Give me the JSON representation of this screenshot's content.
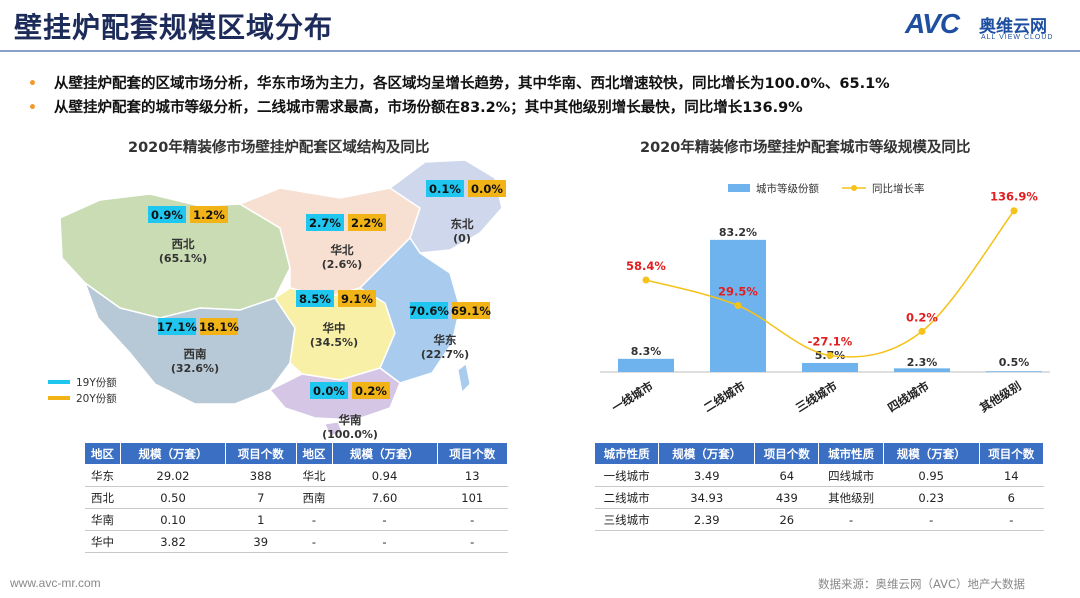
{
  "header": {
    "title": "壁挂炉配套规模区域分布",
    "logo_text": "AVC",
    "logo_cn": "奥维云网",
    "logo_en": "ALL VIEW CLOUD"
  },
  "bullets": [
    "从壁挂炉配套的区域市场分析，华东市场为主力，各区域均呈增长趋势，其中华南、西北增速较快，同比增长为100.0%、65.1%",
    "从壁挂炉配套的城市等级分析，二线城市需求最高，市场份额在83.2%；其中其他级别增长最快，同比增长136.9%"
  ],
  "colors": {
    "share_19y": "#1fc6f0",
    "share_20y": "#f2b316",
    "bar": "#6fb3ee",
    "line": "#f5c21a",
    "growth_label": "#e02020",
    "table_header": "#3a6fc4",
    "bullet": "#f29a2e"
  },
  "chart_data": [
    {
      "type": "map",
      "title": "2020年精装修市场壁挂炉配套区域结构及同比",
      "legend": [
        "19Y份额",
        "20Y份额"
      ],
      "regions": [
        {
          "name": "西北",
          "growth": "(65.1%)",
          "share_19y": "0.9%",
          "share_20y": "1.2%"
        },
        {
          "name": "华北",
          "growth": "(2.6%)",
          "share_19y": "2.7%",
          "share_20y": "2.2%"
        },
        {
          "name": "东北",
          "growth": "(0)",
          "share_19y": "0.1%",
          "share_20y": "0.0%"
        },
        {
          "name": "华中",
          "growth": "(34.5%)",
          "share_19y": "8.5%",
          "share_20y": "9.1%"
        },
        {
          "name": "西南",
          "growth": "(32.6%)",
          "share_19y": "17.1%",
          "share_20y": "18.1%"
        },
        {
          "name": "华东",
          "growth": "(22.7%)",
          "share_19y": "70.6%",
          "share_20y": "69.1%"
        },
        {
          "name": "华南",
          "growth": "(100.0%)",
          "share_19y": "0.0%",
          "share_20y": "0.2%"
        }
      ]
    },
    {
      "type": "bar",
      "title": "2020年精装修市场壁挂炉配套城市等级规模及同比",
      "legend": [
        "城市等级份额",
        "同比增长率"
      ],
      "categories": [
        "一线城市",
        "二线城市",
        "三线城市",
        "四线城市",
        "其他级别"
      ],
      "series": [
        {
          "name": "城市等级份额",
          "type": "bar",
          "values": [
            8.3,
            83.2,
            5.7,
            2.3,
            0.5
          ],
          "labels": [
            "8.3%",
            "83.2%",
            "5.7%",
            "2.3%",
            "0.5%"
          ]
        },
        {
          "name": "同比增长率",
          "type": "line",
          "values": [
            58.4,
            29.5,
            -27.1,
            0.2,
            136.9
          ],
          "labels": [
            "58.4%",
            "29.5%",
            "-27.1%",
            "0.2%",
            "136.9%"
          ]
        }
      ]
    }
  ],
  "region_table": {
    "headers": [
      "地区",
      "规模（万套）",
      "项目个数",
      "地区",
      "规模（万套）",
      "项目个数"
    ],
    "rows": [
      [
        "华东",
        "29.02",
        "388",
        "华北",
        "0.94",
        "13"
      ],
      [
        "西北",
        "0.50",
        "7",
        "西南",
        "7.60",
        "101"
      ],
      [
        "华南",
        "0.10",
        "1",
        "-",
        "-",
        "-"
      ],
      [
        "华中",
        "3.82",
        "39",
        "-",
        "-",
        "-"
      ]
    ]
  },
  "city_table": {
    "headers": [
      "城市性质",
      "规模（万套）",
      "项目个数",
      "城市性质",
      "规模（万套）",
      "项目个数"
    ],
    "rows": [
      [
        "一线城市",
        "3.49",
        "64",
        "四线城市",
        "0.95",
        "14"
      ],
      [
        "二线城市",
        "34.93",
        "439",
        "其他级别",
        "0.23",
        "6"
      ],
      [
        "三线城市",
        "2.39",
        "26",
        "-",
        "-",
        "-"
      ]
    ]
  },
  "footer": {
    "website": "www.avc-mr.com",
    "source": "数据来源：奥维云网（AVC）地产大数据"
  }
}
